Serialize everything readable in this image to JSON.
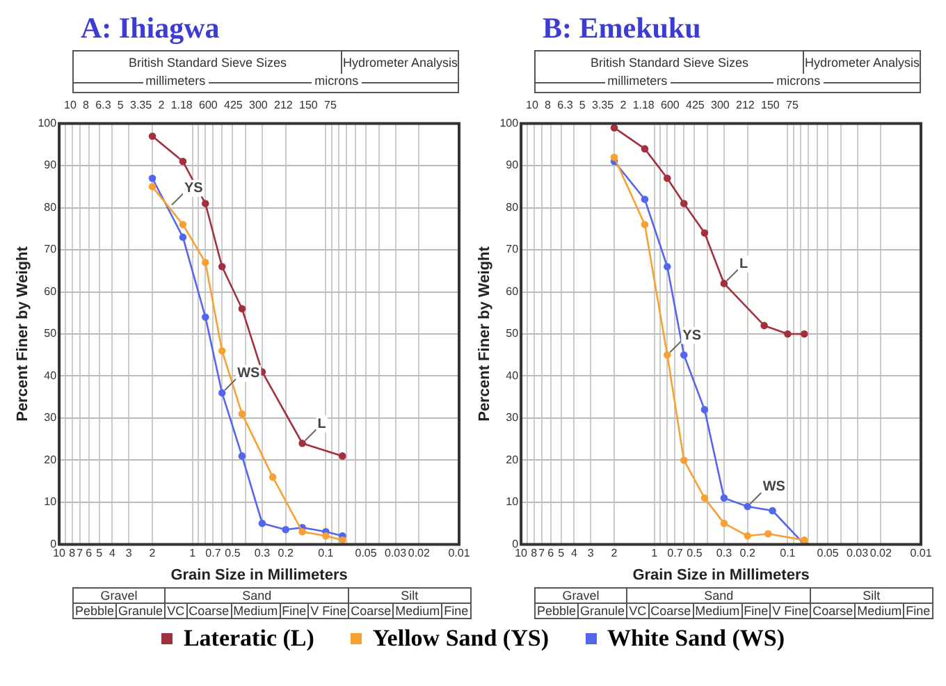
{
  "chart_data": [
    {
      "type": "line",
      "title": "A: Ihiagwa",
      "xlabel": "Grain Size in Millimeters",
      "ylabel": "Percent Finer by Weight",
      "log": "x",
      "xlim": [
        10,
        0.01
      ],
      "ylim": [
        0,
        100
      ],
      "grid": true,
      "marker": "circle",
      "legend": "bottom",
      "xticks": [
        10,
        {
          "value": 9,
          "label": null
        },
        8,
        7,
        6,
        5,
        4,
        3,
        2,
        1,
        {
          "value": 0.9,
          "label": null
        },
        {
          "value": 0.8,
          "label": null
        },
        0.7,
        {
          "value": 0.6,
          "label": null
        },
        0.5,
        {
          "value": 0.4,
          "label": null
        },
        0.3,
        0.2,
        0.1,
        {
          "value": 0.09,
          "label": null
        },
        {
          "value": 0.08,
          "label": null
        },
        {
          "value": 0.07,
          "label": null
        },
        {
          "value": 0.06,
          "label": null
        },
        0.05,
        {
          "value": 0.04,
          "label": null
        },
        0.03,
        0.02,
        0.01
      ],
      "yticks": [
        0,
        10,
        20,
        30,
        40,
        50,
        60,
        70,
        80,
        90,
        100
      ],
      "series": [
        {
          "name": "Lateratic (L)",
          "color": "#a3303d",
          "x": [
            2,
            1.18,
            0.8,
            0.6,
            0.425,
            0.3,
            0.15,
            0.075
          ],
          "values": [
            97,
            91,
            81,
            66,
            56,
            41,
            24,
            21
          ]
        },
        {
          "name": "Yellow Sand (YS)",
          "color": "#f7a034",
          "x": [
            2,
            1.18,
            0.8,
            0.6,
            0.425,
            0.25,
            0.15,
            0.1,
            0.075
          ],
          "values": [
            85,
            76,
            67,
            46,
            31,
            16,
            3,
            2,
            1
          ]
        },
        {
          "name": "White Sand (WS)",
          "color": "#5566ee",
          "x": [
            2,
            1.18,
            0.8,
            0.6,
            0.425,
            0.3,
            0.2,
            0.15,
            0.1,
            0.075
          ],
          "values": [
            87,
            73,
            54,
            36,
            21,
            5,
            3.5,
            4,
            3,
            2
          ]
        }
      ],
      "annotations": [
        "British Standard Sieve Sizes",
        "Hydrometer Analysis",
        "millimeters",
        "microns",
        "Gravel",
        "Sand",
        "Silt",
        "Pebble",
        "Granule",
        "VC",
        "Coarse",
        "Medium",
        "Fine",
        "V Fine",
        "Coarse",
        "Medium",
        "Fine",
        "10",
        "8",
        "6.3",
        "5",
        "3.35",
        "2",
        "1.18",
        "600",
        "425",
        "300",
        "212",
        "150",
        "75",
        {
          "text": "L",
          "x": 0.15,
          "y": 24
        },
        {
          "text": "YS",
          "x": 1.5,
          "y": 80
        },
        {
          "text": "WS",
          "x": 0.6,
          "y": 36
        }
      ]
    },
    {
      "type": "line",
      "title": "B: Emekuku",
      "xlabel": "Grain Size in Millimeters",
      "ylabel": "Percent Finer by Weight",
      "log": "x",
      "xlim": [
        10,
        0.01
      ],
      "ylim": [
        0,
        100
      ],
      "grid": true,
      "marker": "circle",
      "xticks": [
        10,
        {
          "value": 9,
          "label": null
        },
        8,
        7,
        6,
        5,
        4,
        3,
        2,
        1,
        {
          "value": 0.9,
          "label": null
        },
        {
          "value": 0.8,
          "label": null
        },
        0.7,
        {
          "value": 0.6,
          "label": null
        },
        0.5,
        {
          "value": 0.4,
          "label": null
        },
        0.3,
        0.2,
        0.1,
        {
          "value": 0.09,
          "label": null
        },
        {
          "value": 0.08,
          "label": null
        },
        {
          "value": 0.07,
          "label": null
        },
        {
          "value": 0.06,
          "label": null
        },
        0.05,
        {
          "value": 0.04,
          "label": null
        },
        0.03,
        0.02,
        0.01
      ],
      "yticks": [
        0,
        10,
        20,
        30,
        40,
        50,
        60,
        70,
        80,
        90,
        100
      ],
      "series": [
        {
          "color": "#a3303d",
          "x": [
            2,
            1.18,
            0.8,
            0.6,
            0.42,
            0.3,
            0.15,
            0.1,
            0.075
          ],
          "values": [
            99,
            94,
            87,
            81,
            74,
            62,
            52,
            50,
            50
          ]
        },
        {
          "color": "#f7a034",
          "x": [
            2,
            1.18,
            0.8,
            0.6,
            0.42,
            0.3,
            0.2,
            0.14,
            0.075
          ],
          "values": [
            92,
            76,
            45,
            20,
            11,
            5,
            2,
            2.5,
            1
          ]
        },
        {
          "color": "#5566ee",
          "x": [
            2,
            1.18,
            0.8,
            0.6,
            0.42,
            0.3,
            0.2,
            0.13,
            0.075
          ],
          "values": [
            91,
            82,
            66,
            45,
            32,
            11,
            9,
            8,
            0
          ]
        }
      ],
      "annotations": [
        "British Standard Sieve Sizes",
        "Hydrometer Analysis",
        "millimeters",
        "microns",
        "Gravel",
        "Sand",
        "Silt",
        "Pebble",
        "Granule",
        "VC",
        "Coarse",
        "Medium",
        "Fine",
        "V Fine",
        "Coarse",
        "Medium",
        "Fine",
        "10",
        "8",
        "6.3",
        "5",
        "3.35",
        "2",
        "1.18",
        "600",
        "425",
        "300",
        "212",
        "150",
        "75",
        {
          "text": "L",
          "x": 0.3,
          "y": 62
        },
        {
          "text": "YS",
          "x": 0.8,
          "y": 45
        },
        {
          "text": "WS",
          "x": 0.2,
          "y": 9
        }
      ]
    }
  ]
}
